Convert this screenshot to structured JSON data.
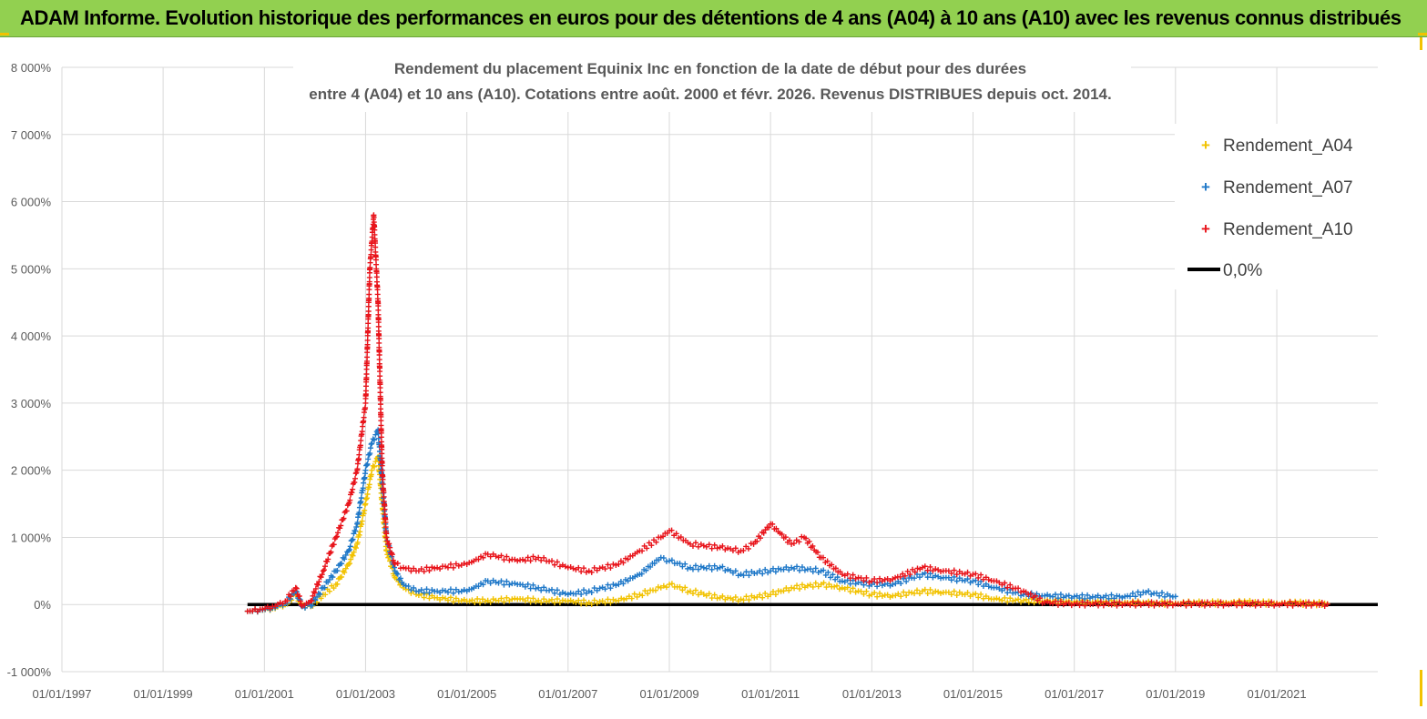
{
  "banner": {
    "title": "ADAM Informe. Evolution historique des performances en euros pour des détentions de 4 ans (A04) à 10 ans (A10) avec les revenus connus distribués"
  },
  "colors": {
    "banner": "#92d050",
    "A04": "#f2c200",
    "A07": "#1f78c8",
    "A10": "#e8141b",
    "zero": "#000000"
  },
  "chart_data": {
    "type": "scatter",
    "title_line1": "Rendement du placement Equinix Inc en fonction de la date de début pour des durées",
    "title_line2": "entre 4 (A04) et 10 ans (A10). Cotations entre août. 2000 et févr. 2026. Revenus DISTRIBUES depuis oct. 2014.",
    "xlabel": "",
    "ylabel": "",
    "x_range": [
      "1997-01-01",
      "2022-12-31"
    ],
    "y_range": [
      -1000,
      8000
    ],
    "x_ticks": [
      "01/01/1997",
      "01/01/1999",
      "01/01/2001",
      "01/01/2003",
      "01/01/2005",
      "01/01/2007",
      "01/01/2009",
      "01/01/2011",
      "01/01/2013",
      "01/01/2015",
      "01/01/2017",
      "01/01/2019",
      "01/01/2021"
    ],
    "y_ticks": [
      "-1 000%",
      "0%",
      "1 000%",
      "2 000%",
      "3 000%",
      "4 000%",
      "5 000%",
      "6 000%",
      "7 000%",
      "8 000%"
    ],
    "grid": true,
    "legend_position": "top-right",
    "legend": [
      "Rendement_A04",
      "Rendement_A07",
      "Rendement_A10",
      "0,0%"
    ],
    "series": [
      {
        "name": "Rendement_A04",
        "marker": "+",
        "x": [
          "2000-09-01",
          "2000-12-01",
          "2001-03-01",
          "2001-06-01",
          "2001-08-15",
          "2001-10-01",
          "2001-12-01",
          "2002-03-01",
          "2002-06-01",
          "2002-09-01",
          "2002-11-01",
          "2003-01-01",
          "2003-02-15",
          "2003-04-01",
          "2003-05-01",
          "2003-06-01",
          "2003-08-01",
          "2003-10-01",
          "2004-01-01",
          "2004-06-01",
          "2005-01-01",
          "2005-06-01",
          "2006-01-01",
          "2006-06-01",
          "2007-01-01",
          "2007-06-01",
          "2008-01-01",
          "2008-06-01",
          "2008-11-01",
          "2009-01-01",
          "2009-06-01",
          "2010-01-01",
          "2010-06-01",
          "2011-01-01",
          "2011-06-01",
          "2012-01-01",
          "2012-06-01",
          "2013-01-01",
          "2013-06-01",
          "2014-01-01",
          "2014-06-01",
          "2015-01-01",
          "2015-06-01",
          "2016-01-01",
          "2016-06-01",
          "2017-01-01",
          "2017-06-01",
          "2018-01-01",
          "2018-06-01",
          "2019-01-01",
          "2019-06-01",
          "2020-01-01",
          "2020-06-01",
          "2021-01-01",
          "2021-06-01",
          "2022-01-01"
        ],
        "y": [
          -100,
          -80,
          -60,
          0,
          150,
          -20,
          -30,
          150,
          300,
          600,
          900,
          1500,
          2000,
          2200,
          1500,
          800,
          400,
          250,
          150,
          100,
          50,
          60,
          80,
          60,
          50,
          30,
          60,
          150,
          250,
          300,
          200,
          100,
          80,
          150,
          250,
          300,
          250,
          150,
          130,
          200,
          180,
          150,
          80,
          60,
          50,
          40,
          30,
          30,
          20,
          20,
          20,
          30,
          30,
          20,
          20,
          10
        ]
      },
      {
        "name": "Rendement_A07",
        "marker": "+",
        "x": [
          "2000-09-01",
          "2000-12-01",
          "2001-03-01",
          "2001-06-01",
          "2001-08-15",
          "2001-10-01",
          "2001-12-01",
          "2002-03-01",
          "2002-06-01",
          "2002-09-01",
          "2002-11-01",
          "2003-01-01",
          "2003-02-15",
          "2003-04-01",
          "2003-05-01",
          "2003-06-01",
          "2003-08-01",
          "2003-10-01",
          "2004-01-01",
          "2004-06-01",
          "2005-01-01",
          "2005-06-01",
          "2006-01-01",
          "2006-06-01",
          "2007-01-01",
          "2007-06-01",
          "2008-01-01",
          "2008-06-01",
          "2008-11-01",
          "2009-01-01",
          "2009-06-01",
          "2010-01-01",
          "2010-06-01",
          "2011-01-01",
          "2011-06-01",
          "2012-01-01",
          "2012-06-01",
          "2013-01-01",
          "2013-06-01",
          "2014-01-01",
          "2014-06-01",
          "2015-01-01",
          "2015-06-01",
          "2016-01-01",
          "2016-06-01",
          "2017-01-01",
          "2017-06-01",
          "2018-01-01",
          "2018-06-01",
          "2019-01-01"
        ],
        "y": [
          -100,
          -80,
          -50,
          20,
          200,
          -30,
          -20,
          250,
          500,
          800,
          1200,
          2000,
          2400,
          2600,
          1800,
          1000,
          500,
          300,
          200,
          200,
          200,
          350,
          300,
          250,
          150,
          200,
          300,
          450,
          700,
          650,
          550,
          550,
          450,
          500,
          550,
          500,
          350,
          300,
          300,
          450,
          400,
          350,
          250,
          150,
          130,
          120,
          110,
          120,
          180,
          120
        ]
      },
      {
        "name": "Rendement_A10",
        "marker": "+",
        "x": [
          "2000-09-01",
          "2000-12-01",
          "2001-03-01",
          "2001-06-01",
          "2001-08-15",
          "2001-10-01",
          "2001-12-01",
          "2002-03-01",
          "2002-06-01",
          "2002-09-01",
          "2002-11-01",
          "2003-01-01",
          "2003-02-01",
          "2003-03-01",
          "2003-04-01",
          "2003-05-01",
          "2003-06-01",
          "2003-08-01",
          "2003-10-01",
          "2004-01-01",
          "2004-06-01",
          "2005-01-01",
          "2005-06-01",
          "2006-01-01",
          "2006-06-01",
          "2007-01-01",
          "2007-06-01",
          "2008-01-01",
          "2008-06-01",
          "2008-11-01",
          "2009-01-01",
          "2009-06-01",
          "2010-01-01",
          "2010-06-01",
          "2010-09-01",
          "2011-01-01",
          "2011-06-01",
          "2011-09-01",
          "2012-01-01",
          "2012-06-01",
          "2013-01-01",
          "2013-06-01",
          "2014-01-01",
          "2014-06-01",
          "2015-01-01",
          "2015-06-01",
          "2016-01-01",
          "2016-06-01",
          "2017-01-01",
          "2018-01-01",
          "2019-01-01",
          "2020-01-01",
          "2021-01-01",
          "2022-01-01"
        ],
        "y": [
          -100,
          -70,
          -30,
          50,
          250,
          -20,
          50,
          500,
          1000,
          1500,
          2000,
          3000,
          5000,
          5800,
          4500,
          2000,
          1000,
          600,
          550,
          500,
          550,
          600,
          750,
          650,
          700,
          550,
          500,
          600,
          800,
          1000,
          1100,
          900,
          850,
          800,
          900,
          1200,
          900,
          1000,
          700,
          450,
          350,
          380,
          550,
          500,
          450,
          350,
          200,
          30,
          10,
          10,
          10,
          10,
          10,
          5
        ]
      },
      {
        "name": "0,0%",
        "x": [
          "2000-09-01",
          "2022-12-31"
        ],
        "y": [
          0,
          0
        ]
      }
    ]
  }
}
